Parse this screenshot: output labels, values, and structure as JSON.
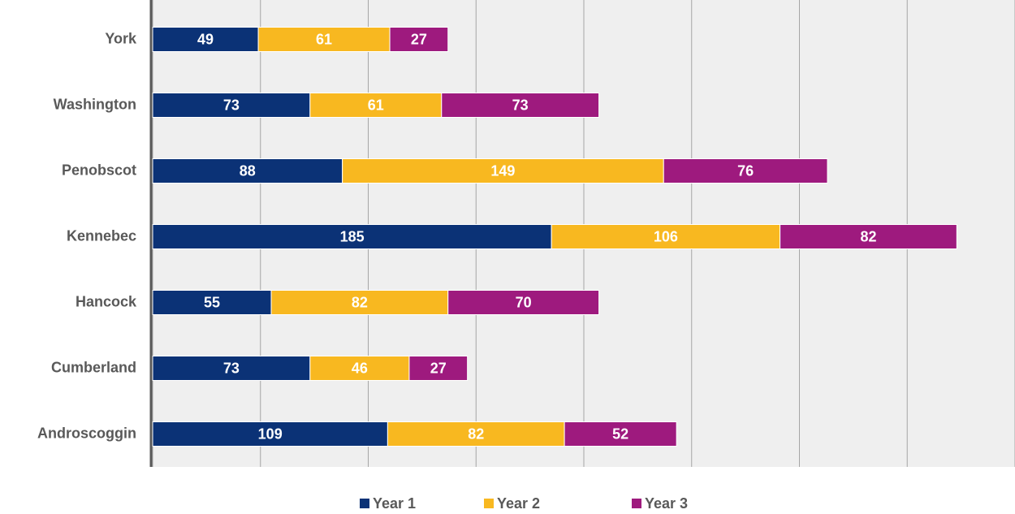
{
  "chart_data": {
    "type": "stacked-bar-horizontal",
    "categories": [
      "York",
      "Washington",
      "Penobscot",
      "Kennebec",
      "Hancock",
      "Cumberland",
      "Androscoggin"
    ],
    "series": [
      {
        "name": "Year 1",
        "color": "#0b3276",
        "values": [
          49,
          73,
          88,
          185,
          55,
          73,
          109
        ]
      },
      {
        "name": "Year 2",
        "color": "#f8b820",
        "values": [
          61,
          61,
          149,
          106,
          82,
          46,
          82
        ]
      },
      {
        "name": "Year 3",
        "color": "#9e1a7e",
        "values": [
          27,
          73,
          76,
          82,
          70,
          27,
          52
        ]
      }
    ],
    "xlim": [
      0,
      400
    ],
    "xticks": [
      0,
      50,
      100,
      150,
      200,
      250,
      300,
      350,
      400
    ],
    "grid": true
  }
}
